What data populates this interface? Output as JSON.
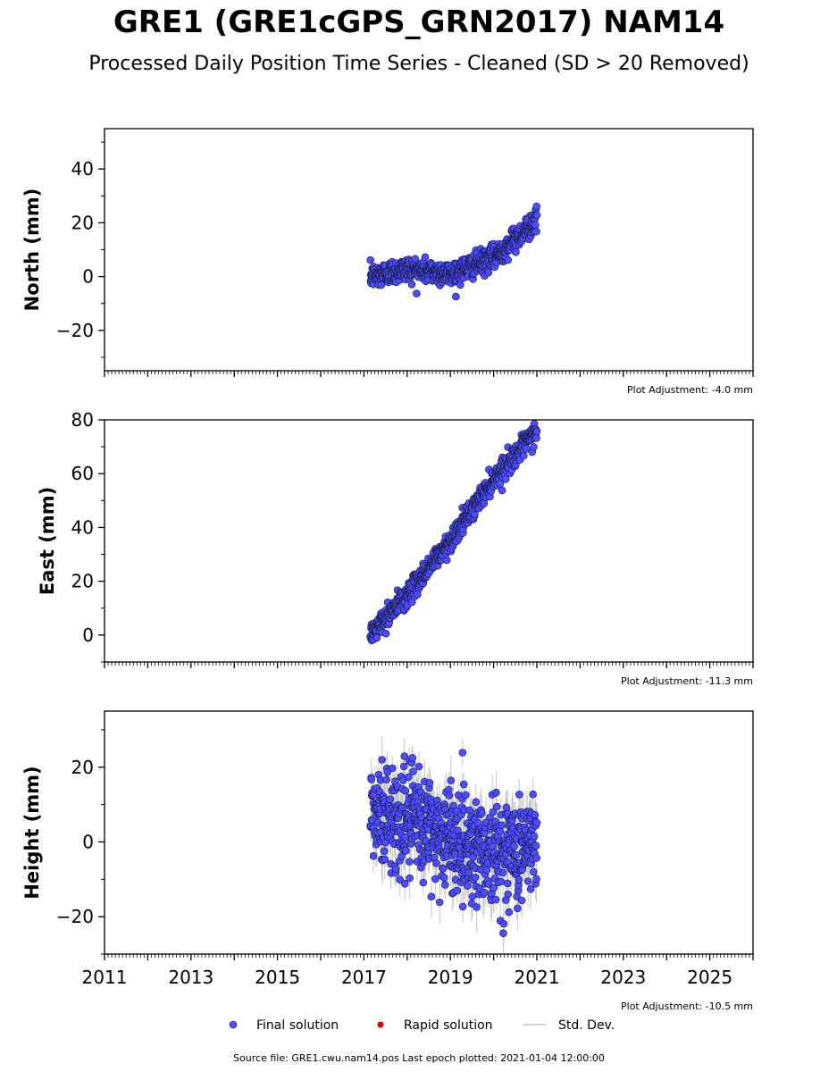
{
  "title": "GRE1 (GRE1cGPS_GRN2017) NAM14",
  "subtitle": "Processed Daily Position Time Series - Cleaned (SD > 20 Removed)",
  "legend": {
    "final": "Final solution",
    "rapid": "Rapid solution",
    "std": "Std. Dev.",
    "final_color": "#4b4bff",
    "rapid_color": "#dd0000",
    "std_color": "#c8c8c8"
  },
  "footer": "Source file: GRE1.cwu.nam14.pos  Last epoch plotted: 2021-01-04 12:00:00",
  "chart_data": [
    {
      "type": "scatter",
      "ylabel": "North (mm)",
      "xlim": [
        2011,
        2026
      ],
      "ylim": [
        -35,
        55
      ],
      "yticks": [
        -20,
        0,
        20,
        40
      ],
      "adjustment": "Plot Adjustment: -4.0 mm",
      "x_range": [
        2017.15,
        2021.0
      ],
      "trend": [
        [
          2017.15,
          0
        ],
        [
          2018.0,
          3
        ],
        [
          2019.0,
          1
        ],
        [
          2020.0,
          7
        ],
        [
          2020.5,
          14
        ],
        [
          2021.0,
          21
        ]
      ],
      "scatter": 2.2,
      "std_dev": 0,
      "series": [
        {
          "name": "Final solution"
        }
      ]
    },
    {
      "type": "scatter",
      "ylabel": "East (mm)",
      "xlim": [
        2011,
        2026
      ],
      "ylim": [
        -10,
        80
      ],
      "yticks": [
        0,
        20,
        40,
        60,
        80
      ],
      "adjustment": "Plot Adjustment: -11.3 mm",
      "x_range": [
        2017.15,
        2021.0
      ],
      "trend": [
        [
          2017.15,
          0
        ],
        [
          2018.0,
          15
        ],
        [
          2019.0,
          35
        ],
        [
          2020.0,
          58
        ],
        [
          2021.0,
          76
        ]
      ],
      "scatter": 2.0,
      "std_dev": 0,
      "series": [
        {
          "name": "Final solution"
        }
      ]
    },
    {
      "type": "scatter",
      "ylabel": "Height (mm)",
      "xlim": [
        2011,
        2026
      ],
      "ylim": [
        -30,
        35
      ],
      "yticks": [
        -20,
        0,
        20
      ],
      "xticks": [
        2011,
        2013,
        2015,
        2017,
        2019,
        2021,
        2023,
        2025
      ],
      "adjustment": "Plot Adjustment: -10.5 mm",
      "x_range": [
        2017.15,
        2021.0
      ],
      "trend": [
        [
          2017.15,
          7
        ],
        [
          2018.0,
          6
        ],
        [
          2019.0,
          1
        ],
        [
          2020.0,
          -3
        ],
        [
          2021.0,
          -1
        ]
      ],
      "scatter": 7.0,
      "std_dev": 5.0,
      "series": [
        {
          "name": "Final solution"
        }
      ]
    }
  ]
}
